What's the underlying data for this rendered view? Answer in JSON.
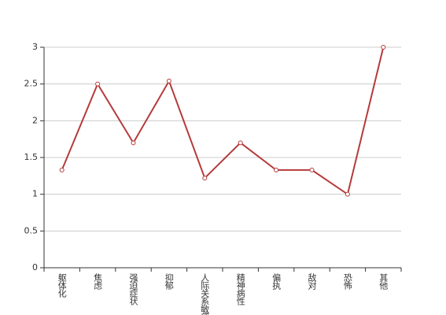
{
  "chart_data": {
    "type": "line",
    "categories": [
      "躯体化",
      "焦虑",
      "强迫症状",
      "抑郁",
      "人际关系敏感",
      "精神病性",
      "偏执",
      "敌对",
      "恐怖",
      "其他"
    ],
    "series": [
      {
        "color": "#b53a3a",
        "values": [
          1.33,
          2.5,
          1.7,
          2.54,
          1.22,
          1.7,
          1.33,
          1.33,
          1.0,
          3.0
        ]
      }
    ],
    "ylim": [
      0,
      3
    ],
    "yticks": [
      0,
      0.5,
      1,
      1.5,
      2,
      2.5,
      3
    ],
    "grid": true
  }
}
